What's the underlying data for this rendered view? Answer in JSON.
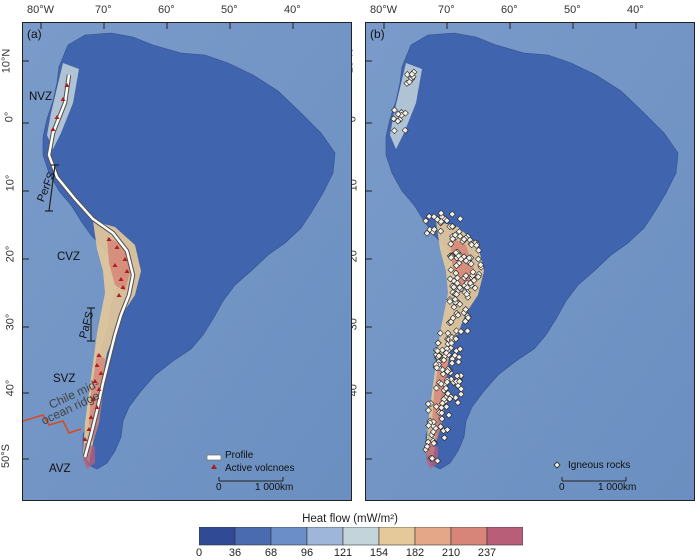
{
  "panel_a": {
    "letter": "(a)",
    "zones": {
      "nvz": "NVZ",
      "cvz": "CVZ",
      "svz": "SVZ",
      "avz": "AVZ"
    },
    "faults": {
      "perfs": "PerFS",
      "pafs": "PaFS"
    },
    "ridge_line1": "Chile mid-",
    "ridge_line2": "ocean ridge",
    "legend": {
      "profile": "Profile",
      "volcanoes": "Active volcnoes"
    },
    "scale": {
      "zero": "0",
      "value": "1 000km"
    }
  },
  "panel_b": {
    "letter": "(b)",
    "legend": {
      "rocks": "Igneous rocks"
    },
    "scale": {
      "zero": "0",
      "value": "1 000km"
    }
  },
  "lon_ticks": [
    "80°W",
    "70°",
    "60°",
    "50°",
    "40°"
  ],
  "lat_ticks": [
    "10°N",
    "0°",
    "10°",
    "20°",
    "30°",
    "40°",
    "50°S"
  ],
  "colorbar": {
    "title": "Heat flow (mW/m²)",
    "ticks": [
      "0",
      "36",
      "68",
      "96",
      "121",
      "154",
      "182",
      "210",
      "237"
    ],
    "colors": [
      "#314a96",
      "#4a6bb0",
      "#6b8dc8",
      "#9db6da",
      "#c3d4da",
      "#e6c99a",
      "#e4a888",
      "#d68578",
      "#b85e78"
    ]
  },
  "colors": {
    "ocean": "#6f93c2",
    "land": "#3f63ad",
    "profile": "#ffffff",
    "volcano": "#b01c1c",
    "ridge": "#d84a1a"
  }
}
